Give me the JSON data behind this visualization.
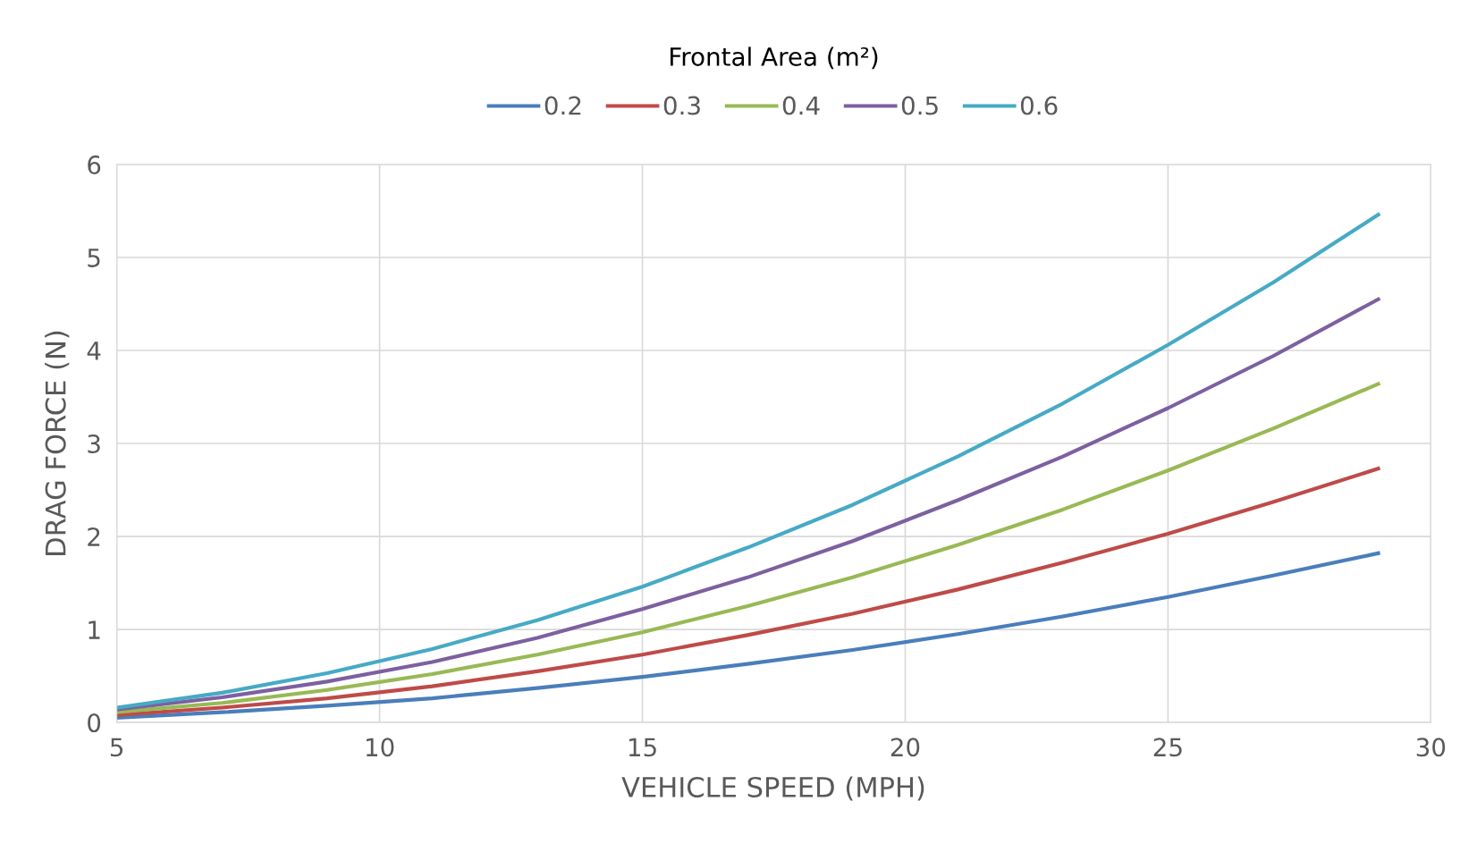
{
  "chart_data": {
    "type": "line",
    "xlabel": "VEHICLE SPEED (MPH)",
    "ylabel": "DRAG FORCE (N)",
    "legend_title": "Frontal Area (m²)",
    "x": [
      5,
      7,
      9,
      11,
      13,
      15,
      17,
      19,
      21,
      23,
      25,
      27,
      29
    ],
    "series": [
      {
        "name": "0.2",
        "color": "#4a7ebb",
        "values": [
          0.05,
          0.11,
          0.18,
          0.26,
          0.37,
          0.49,
          0.63,
          0.78,
          0.95,
          1.14,
          1.35,
          1.58,
          1.82
        ]
      },
      {
        "name": "0.3",
        "color": "#be4b48",
        "values": [
          0.08,
          0.16,
          0.26,
          0.39,
          0.55,
          0.73,
          0.94,
          1.17,
          1.43,
          1.72,
          2.03,
          2.37,
          2.73
        ]
      },
      {
        "name": "0.4",
        "color": "#98b954",
        "values": [
          0.11,
          0.21,
          0.35,
          0.52,
          0.73,
          0.97,
          1.25,
          1.56,
          1.91,
          2.29,
          2.71,
          3.16,
          3.64
        ]
      },
      {
        "name": "0.5",
        "color": "#7d60a0",
        "values": [
          0.14,
          0.27,
          0.44,
          0.65,
          0.91,
          1.22,
          1.56,
          1.95,
          2.39,
          2.86,
          3.38,
          3.94,
          4.55
        ]
      },
      {
        "name": "0.6",
        "color": "#46aac5",
        "values": [
          0.16,
          0.32,
          0.53,
          0.79,
          1.1,
          1.46,
          1.88,
          2.34,
          2.86,
          3.43,
          4.06,
          4.73,
          5.46
        ]
      }
    ],
    "xlim": [
      5,
      30
    ],
    "xticks": [
      5,
      10,
      15,
      20,
      25,
      30
    ],
    "ylim": [
      0,
      6
    ],
    "yticks": [
      0,
      1,
      2,
      3,
      4,
      5,
      6
    ],
    "grid": true,
    "legend": "top",
    "marker": "none",
    "line_style": "solid"
  }
}
